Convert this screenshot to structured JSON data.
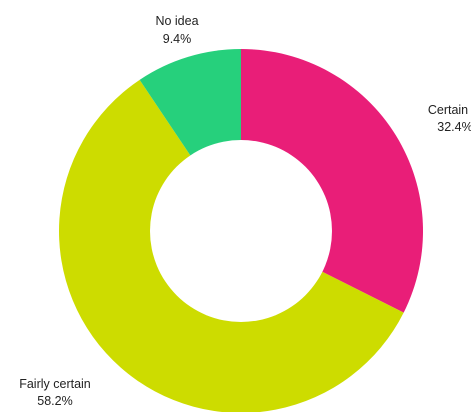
{
  "chart_data": {
    "type": "pie",
    "donut": true,
    "title": "",
    "slices": [
      {
        "label": "Certain",
        "value": 32.4,
        "value_label": "32.4%",
        "color": "#e91e78"
      },
      {
        "label": "Fairly certain",
        "value": 58.2,
        "value_label": "58.2%",
        "color": "#cddc00"
      },
      {
        "label": "No idea",
        "value": 9.4,
        "value_label": "9.4%",
        "color": "#26d07c"
      }
    ],
    "start_angle_deg": 0,
    "direction": "clockwise",
    "legend": "none"
  }
}
